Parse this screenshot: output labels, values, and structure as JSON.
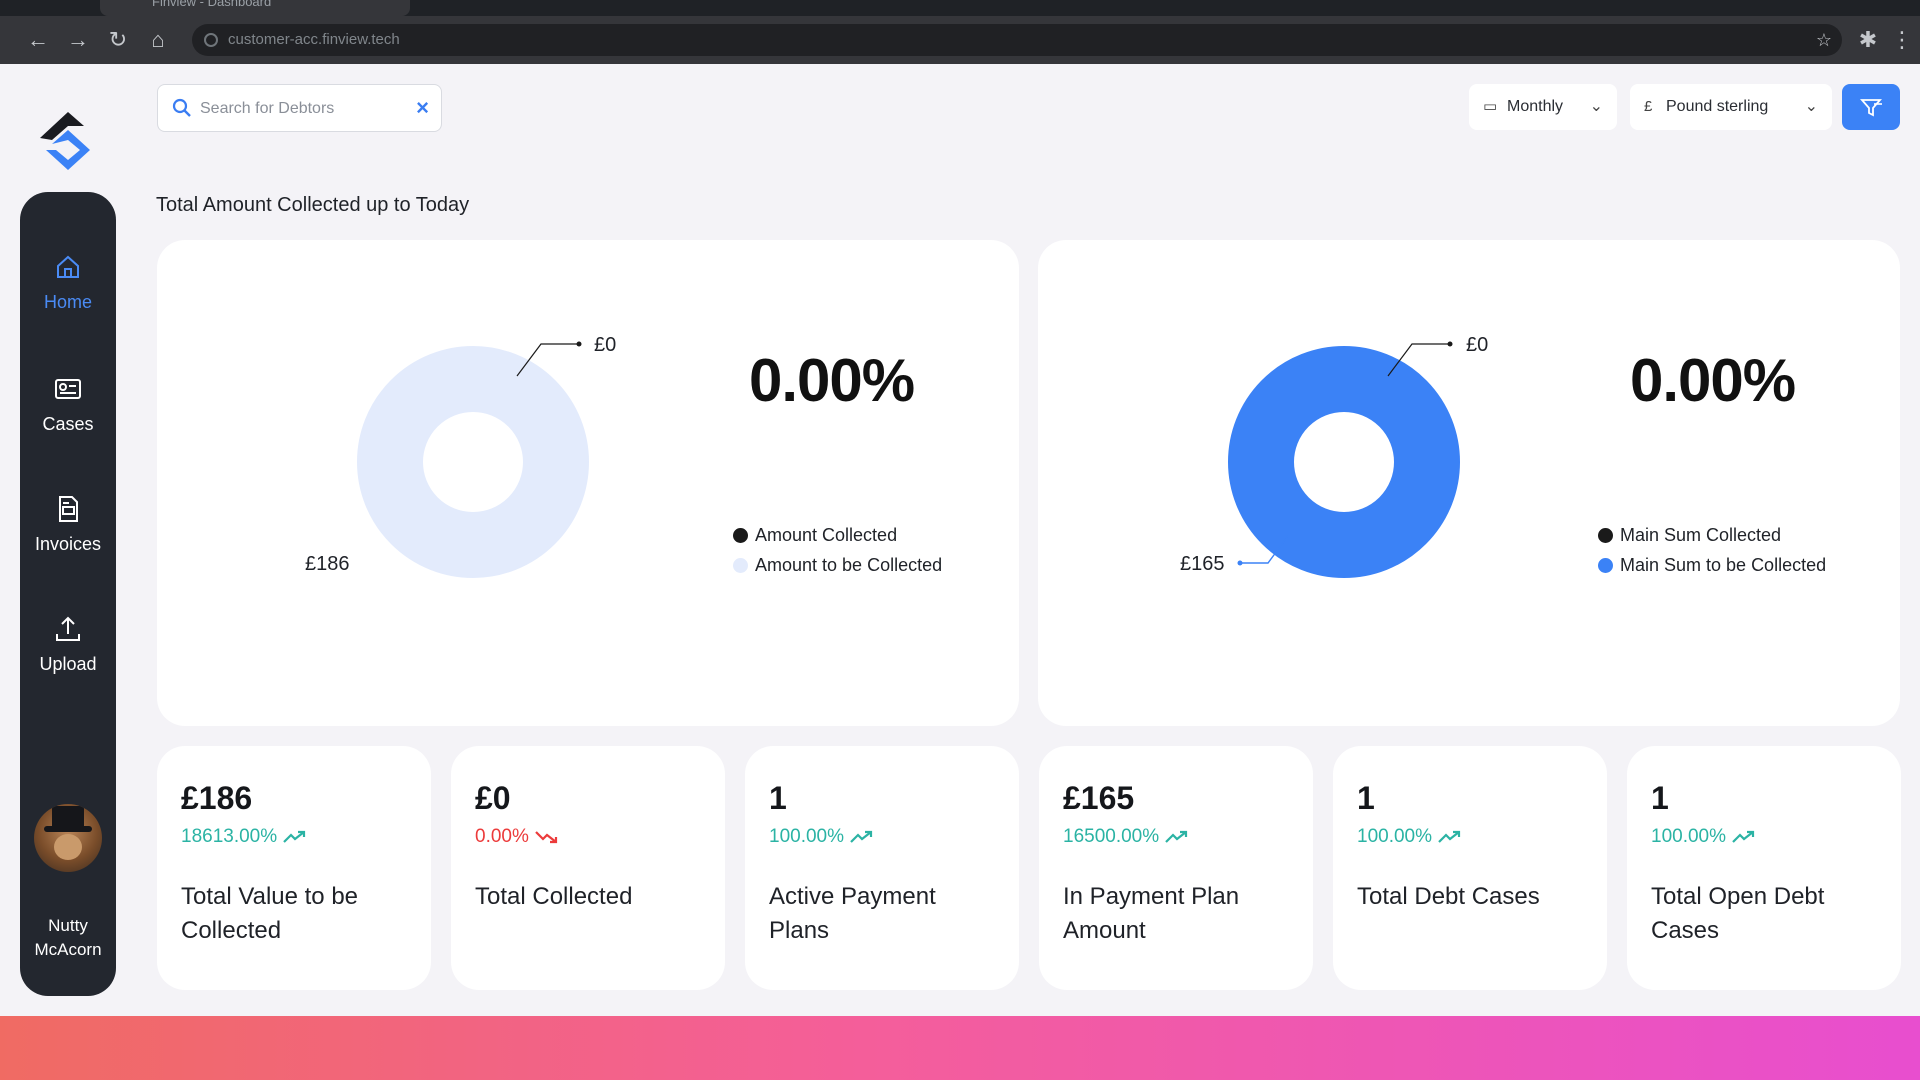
{
  "browser": {
    "tab_title": "Finview - Dashboard",
    "url": "customer-acc.finview.tech"
  },
  "sidebar": {
    "items": [
      {
        "label": "Home",
        "icon": "home-icon",
        "active": true
      },
      {
        "label": "Cases",
        "icon": "id-card-icon",
        "active": false
      },
      {
        "label": "Invoices",
        "icon": "invoice-icon",
        "active": false
      },
      {
        "label": "Upload",
        "icon": "upload-icon",
        "active": false
      }
    ],
    "user": {
      "name": "Nutty McAcorn"
    }
  },
  "search": {
    "placeholder": "Search for Debtors",
    "value": ""
  },
  "filters": {
    "period": "Monthly",
    "currency_symbol": "£",
    "currency": "Pound sterling"
  },
  "section_title": "Total Amount Collected up to Today",
  "charts": [
    {
      "percent": "0.00%",
      "legend": [
        "Amount Collected",
        "Amount to be Collected"
      ],
      "top_label": "£0",
      "bottom_label": "£186",
      "colors": {
        "collected": "#1a1a1a",
        "remaining": "#e3ebfc"
      }
    },
    {
      "percent": "0.00%",
      "legend": [
        "Main Sum Collected",
        "Main Sum to be Collected"
      ],
      "top_label": "£0",
      "bottom_label": "£165",
      "colors": {
        "collected": "#1a1a1a",
        "remaining": "#3b82f6"
      }
    }
  ],
  "chart_data": [
    {
      "type": "pie",
      "categories": [
        "Amount Collected",
        "Amount to be Collected"
      ],
      "values": [
        0,
        186
      ],
      "title": "",
      "legend": "right"
    },
    {
      "type": "pie",
      "categories": [
        "Main Sum Collected",
        "Main Sum to be Collected"
      ],
      "values": [
        0,
        165
      ],
      "title": "",
      "legend": "right"
    }
  ],
  "stats": [
    {
      "value": "£186",
      "change": "18613.00%",
      "trend": "up",
      "label": "Total Value to be Collected"
    },
    {
      "value": "£0",
      "change": "0.00%",
      "trend": "down",
      "label": "Total Collected"
    },
    {
      "value": "1",
      "change": "100.00%",
      "trend": "up",
      "label": "Active Payment Plans"
    },
    {
      "value": "£165",
      "change": "16500.00%",
      "trend": "up",
      "label": "In Payment Plan Amount"
    },
    {
      "value": "1",
      "change": "100.00%",
      "trend": "up",
      "label": "Total Debt Cases"
    },
    {
      "value": "1",
      "change": "100.00%",
      "trend": "up",
      "label": "Total Open Debt Cases"
    }
  ],
  "colors": {
    "accent": "#3b82f6",
    "positive": "#2bb3a4",
    "negative": "#ec3b3b",
    "sidebar": "#23272f"
  }
}
